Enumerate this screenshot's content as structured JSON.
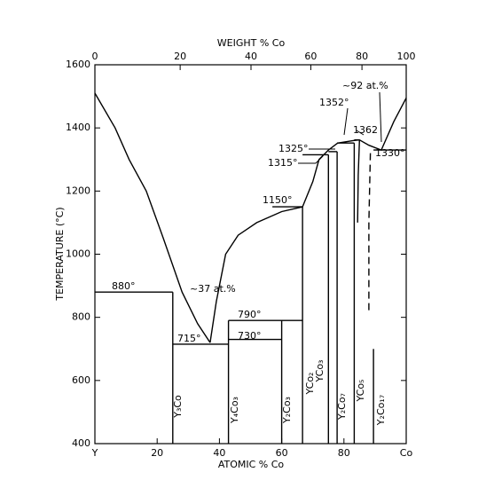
{
  "chart_data": {
    "type": "phase-diagram",
    "x_label": "ATOMIC % Co",
    "x2_label": "WEIGHT % Co",
    "y_label": "TEMPERATURE (°C)",
    "xlim": [
      0,
      100
    ],
    "ylim": [
      400,
      1600
    ],
    "xticks": [
      {
        "value": 0,
        "label": "Y"
      },
      20,
      40,
      60,
      80,
      {
        "value": 100,
        "label": "Co"
      }
    ],
    "x2ticks": [
      0,
      20,
      40,
      60,
      80,
      100
    ],
    "yticks": [
      400,
      600,
      800,
      1000,
      1200,
      1400,
      1600
    ],
    "color": "#000000",
    "lines": [
      {
        "x": [
          0,
          6.5,
          11,
          16.5,
          22,
          28,
          33,
          37
        ],
        "y": [
          1510,
          1400,
          1300,
          1200,
          1050,
          880,
          780,
          720
        ]
      },
      {
        "x": [
          37,
          39,
          42,
          46,
          52,
          60,
          66.7,
          70,
          72,
          75,
          78,
          83,
          85,
          88,
          92,
          96,
          100
        ],
        "y": [
          720,
          850,
          1000,
          1060,
          1100,
          1135,
          1150,
          1230,
          1300,
          1330,
          1352,
          1360,
          1362,
          1345,
          1330,
          1420,
          1495
        ]
      },
      {
        "x": [
          0,
          25
        ],
        "y": [
          880,
          880
        ]
      },
      {
        "x": [
          25,
          42.9
        ],
        "y": [
          715,
          715
        ]
      },
      {
        "x": [
          42.9,
          60
        ],
        "y": [
          730,
          730
        ]
      },
      {
        "x": [
          42.9,
          66.7
        ],
        "y": [
          790,
          790
        ]
      },
      {
        "x": [
          57,
          66.7
        ],
        "y": [
          1150,
          1150
        ]
      },
      {
        "x": [
          66.7,
          75
        ],
        "y": [
          1315,
          1315
        ]
      },
      {
        "x": [
          75,
          77.8
        ],
        "y": [
          1325,
          1325
        ]
      },
      {
        "x": [
          77.8,
          83.3
        ],
        "y": [
          1352,
          1352
        ]
      },
      {
        "x": [
          83.3,
          85
        ],
        "y": [
          1362,
          1362
        ]
      },
      {
        "x": [
          89.5,
          100
        ],
        "y": [
          1330,
          1330
        ]
      },
      {
        "x": [
          25,
          25
        ],
        "y": [
          400,
          880
        ]
      },
      {
        "x": [
          42.9,
          42.9
        ],
        "y": [
          400,
          790
        ]
      },
      {
        "x": [
          60,
          60
        ],
        "y": [
          400,
          790
        ]
      },
      {
        "x": [
          66.7,
          66.7
        ],
        "y": [
          400,
          1150
        ]
      },
      {
        "x": [
          75,
          75
        ],
        "y": [
          400,
          1315
        ]
      },
      {
        "x": [
          77.8,
          77.8
        ],
        "y": [
          400,
          1325
        ]
      },
      {
        "x": [
          83.3,
          83.3
        ],
        "y": [
          400,
          1352
        ]
      },
      {
        "x": [
          89.5,
          89.5
        ],
        "y": [
          400,
          700
        ]
      },
      {
        "x": [
          85,
          84.6,
          84.4
        ],
        "y": [
          1362,
          1250,
          1100
        ]
      },
      {
        "x": [
          88.5,
          88,
          88
        ],
        "y": [
          1320,
          1100,
          810
        ],
        "dashed": true
      }
    ],
    "annotations": [
      "880°",
      "~37 at.%",
      "715°",
      "790°",
      "730°",
      "1150°",
      "1325°",
      "1315°",
      "1352°",
      "1362",
      "~92 at.%",
      "1330°"
    ],
    "phases": [
      "Y₃Co",
      "Y₄Co₃",
      "Y₂Co₃",
      "YCo₂",
      "YCo₃",
      "Y₂Co₇",
      "YCo₅",
      "Y₂Co₁₇"
    ]
  }
}
